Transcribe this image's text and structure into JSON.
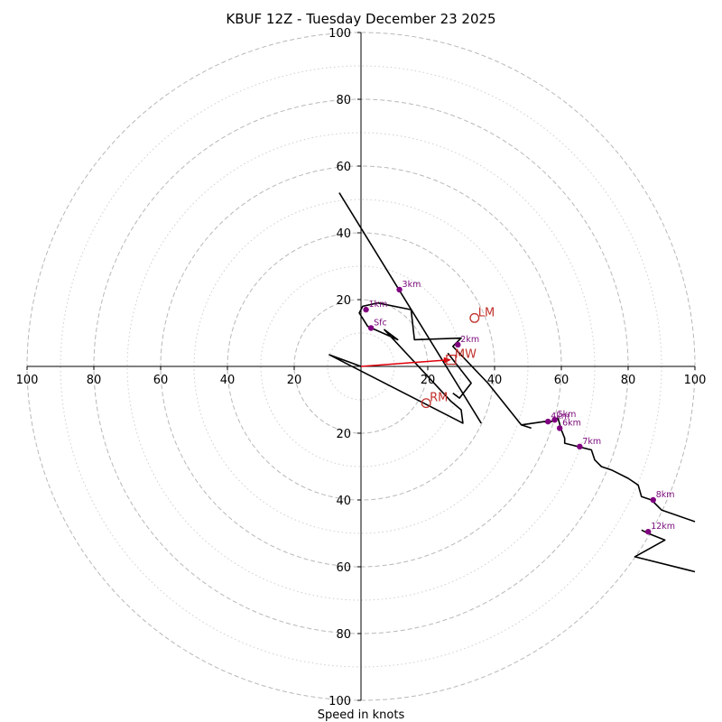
{
  "chart_data": {
    "type": "scatter",
    "subtype": "hodograph",
    "title": "KBUF 12Z - Tuesday December 23 2025",
    "xlabel": "Speed in knots",
    "ylabel": "",
    "xlim": [
      -100,
      100
    ],
    "ylim": [
      -100,
      100
    ],
    "rings_major": [
      20,
      40,
      60,
      80,
      100
    ],
    "rings_minor": [
      10,
      30,
      50,
      70,
      90
    ],
    "tick_values": [
      20,
      40,
      60,
      80,
      100
    ],
    "tick_labels": [
      "20",
      "40",
      "60",
      "80",
      "100"
    ],
    "grid": true,
    "hodograph_trace": [
      [
        0.0,
        0.0
      ],
      [
        -9.5,
        3.5
      ],
      [
        30.5,
        -17.0
      ],
      [
        30.0,
        -13.0
      ],
      [
        27.0,
        -10.5
      ],
      [
        7.0,
        11.0
      ],
      [
        11.0,
        8.0
      ],
      [
        2.0,
        12.0
      ],
      [
        -0.5,
        16.0
      ],
      [
        0.5,
        18.0
      ],
      [
        5.0,
        19.0
      ],
      [
        15.0,
        17.0
      ],
      [
        16.0,
        8.0
      ],
      [
        30.0,
        8.5
      ],
      [
        27.5,
        6.0
      ],
      [
        38.0,
        -5.0
      ],
      [
        48.0,
        -17.5
      ],
      [
        55.0,
        -16.5
      ],
      [
        56.0,
        -17.0
      ],
      [
        59.0,
        -15.5
      ],
      [
        60.0,
        -19.0
      ],
      [
        61.0,
        -21.5
      ],
      [
        61.0,
        -23.0
      ],
      [
        65.0,
        -24.0
      ],
      [
        69.0,
        -25.0
      ],
      [
        70.0,
        -28.0
      ],
      [
        72.0,
        -30.0
      ],
      [
        75.0,
        -31.0
      ],
      [
        80.0,
        -33.5
      ],
      [
        83.0,
        -35.5
      ],
      [
        84.0,
        -39.0
      ],
      [
        87.0,
        -40.0
      ],
      [
        90.0,
        -43.0
      ],
      [
        100.0,
        -46.5
      ]
    ],
    "hodograph_trace_upper": [
      [
        100.0,
        -61.5
      ],
      [
        82.0,
        -57.0
      ],
      [
        91.0,
        -52.0
      ],
      [
        86.0,
        -50.0
      ],
      [
        84.0,
        -49.0
      ]
    ],
    "upper_line": [
      [
        -6.5,
        52.0
      ],
      [
        36.0,
        -17.0
      ]
    ],
    "lower_link": [
      [
        27.5,
        -8.0
      ],
      [
        29.5,
        -9.5
      ],
      [
        33.0,
        -5.0
      ],
      [
        26.0,
        4.0
      ]
    ],
    "lower_hook": [
      [
        51.0,
        -18.5
      ],
      [
        48.0,
        -17.5
      ]
    ],
    "height_markers": [
      {
        "label": "Sfc",
        "u": 3.0,
        "v": 11.5
      },
      {
        "label": "1km",
        "u": 1.5,
        "v": 17.0
      },
      {
        "label": "2km",
        "u": 29.0,
        "v": 6.5
      },
      {
        "label": "3km",
        "u": 11.5,
        "v": 23.0
      },
      {
        "label": "4km",
        "u": 56.0,
        "v": -16.5
      },
      {
        "label": "5km",
        "u": 58.0,
        "v": -16.0
      },
      {
        "label": "6km",
        "u": 59.5,
        "v": -18.5
      },
      {
        "label": "7km",
        "u": 65.5,
        "v": -24.0
      },
      {
        "label": "8km",
        "u": 87.5,
        "v": -40.0
      },
      {
        "label": "12km",
        "u": 86.0,
        "v": -49.5
      }
    ],
    "motion_markers": [
      {
        "label": "LM",
        "u": 34.0,
        "v": 14.5,
        "shape": "circle"
      },
      {
        "label": "RM",
        "u": 19.5,
        "v": -11.0,
        "shape": "circle"
      },
      {
        "label": "MW",
        "u": 27.0,
        "v": 2.0,
        "shape": "square"
      }
    ],
    "mean_wind_arrow": {
      "from": [
        0.0,
        0.0
      ],
      "to": [
        27.0,
        2.0
      ]
    },
    "colors": {
      "trace": "#000000",
      "height_marker": "#800080",
      "height_label": "#7a0a7a",
      "motion": "#c0302a",
      "arrow": "#e0000a",
      "ring_major": "#b8b8b8",
      "ring_minor": "#cfcfcf"
    }
  }
}
